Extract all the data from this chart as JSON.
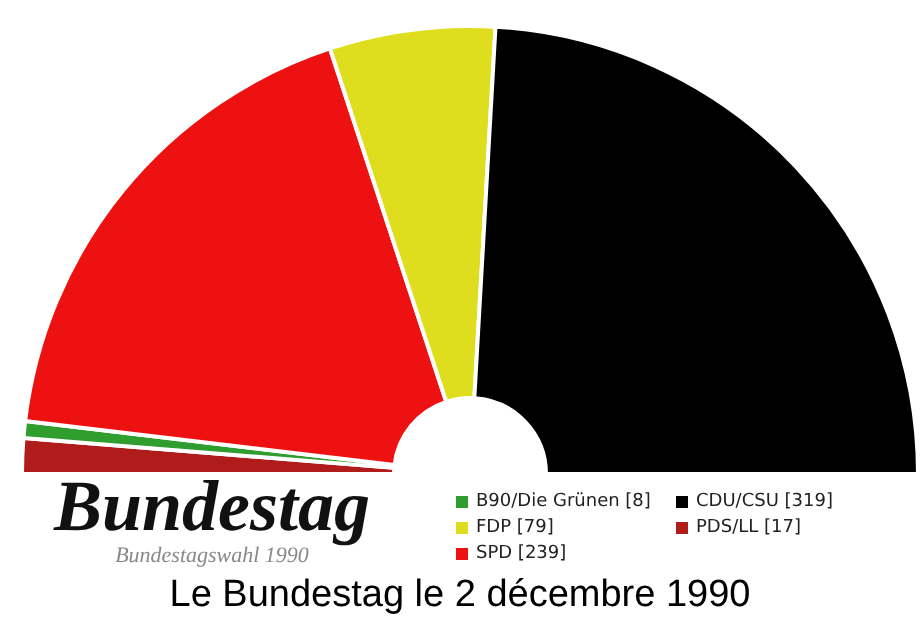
{
  "chart_data": {
    "type": "donut",
    "title": "Bundestag",
    "subtitle": "Bundestagswahl 1990",
    "annotations": [
      "Le Bundestag le 2 décembre 1990"
    ],
    "categories": [
      "PDS/LL [17]",
      "B90/Die Grünen [8]",
      "SPD [239]",
      "FDP [79]",
      "CDU/CSU [319]"
    ],
    "values": [
      17,
      8,
      239,
      79,
      319
    ],
    "colors": [
      "#b01c1c",
      "#2f9e2f",
      "#ee1111",
      "#dede1e",
      "#000000"
    ],
    "legend": "bottom"
  }
}
